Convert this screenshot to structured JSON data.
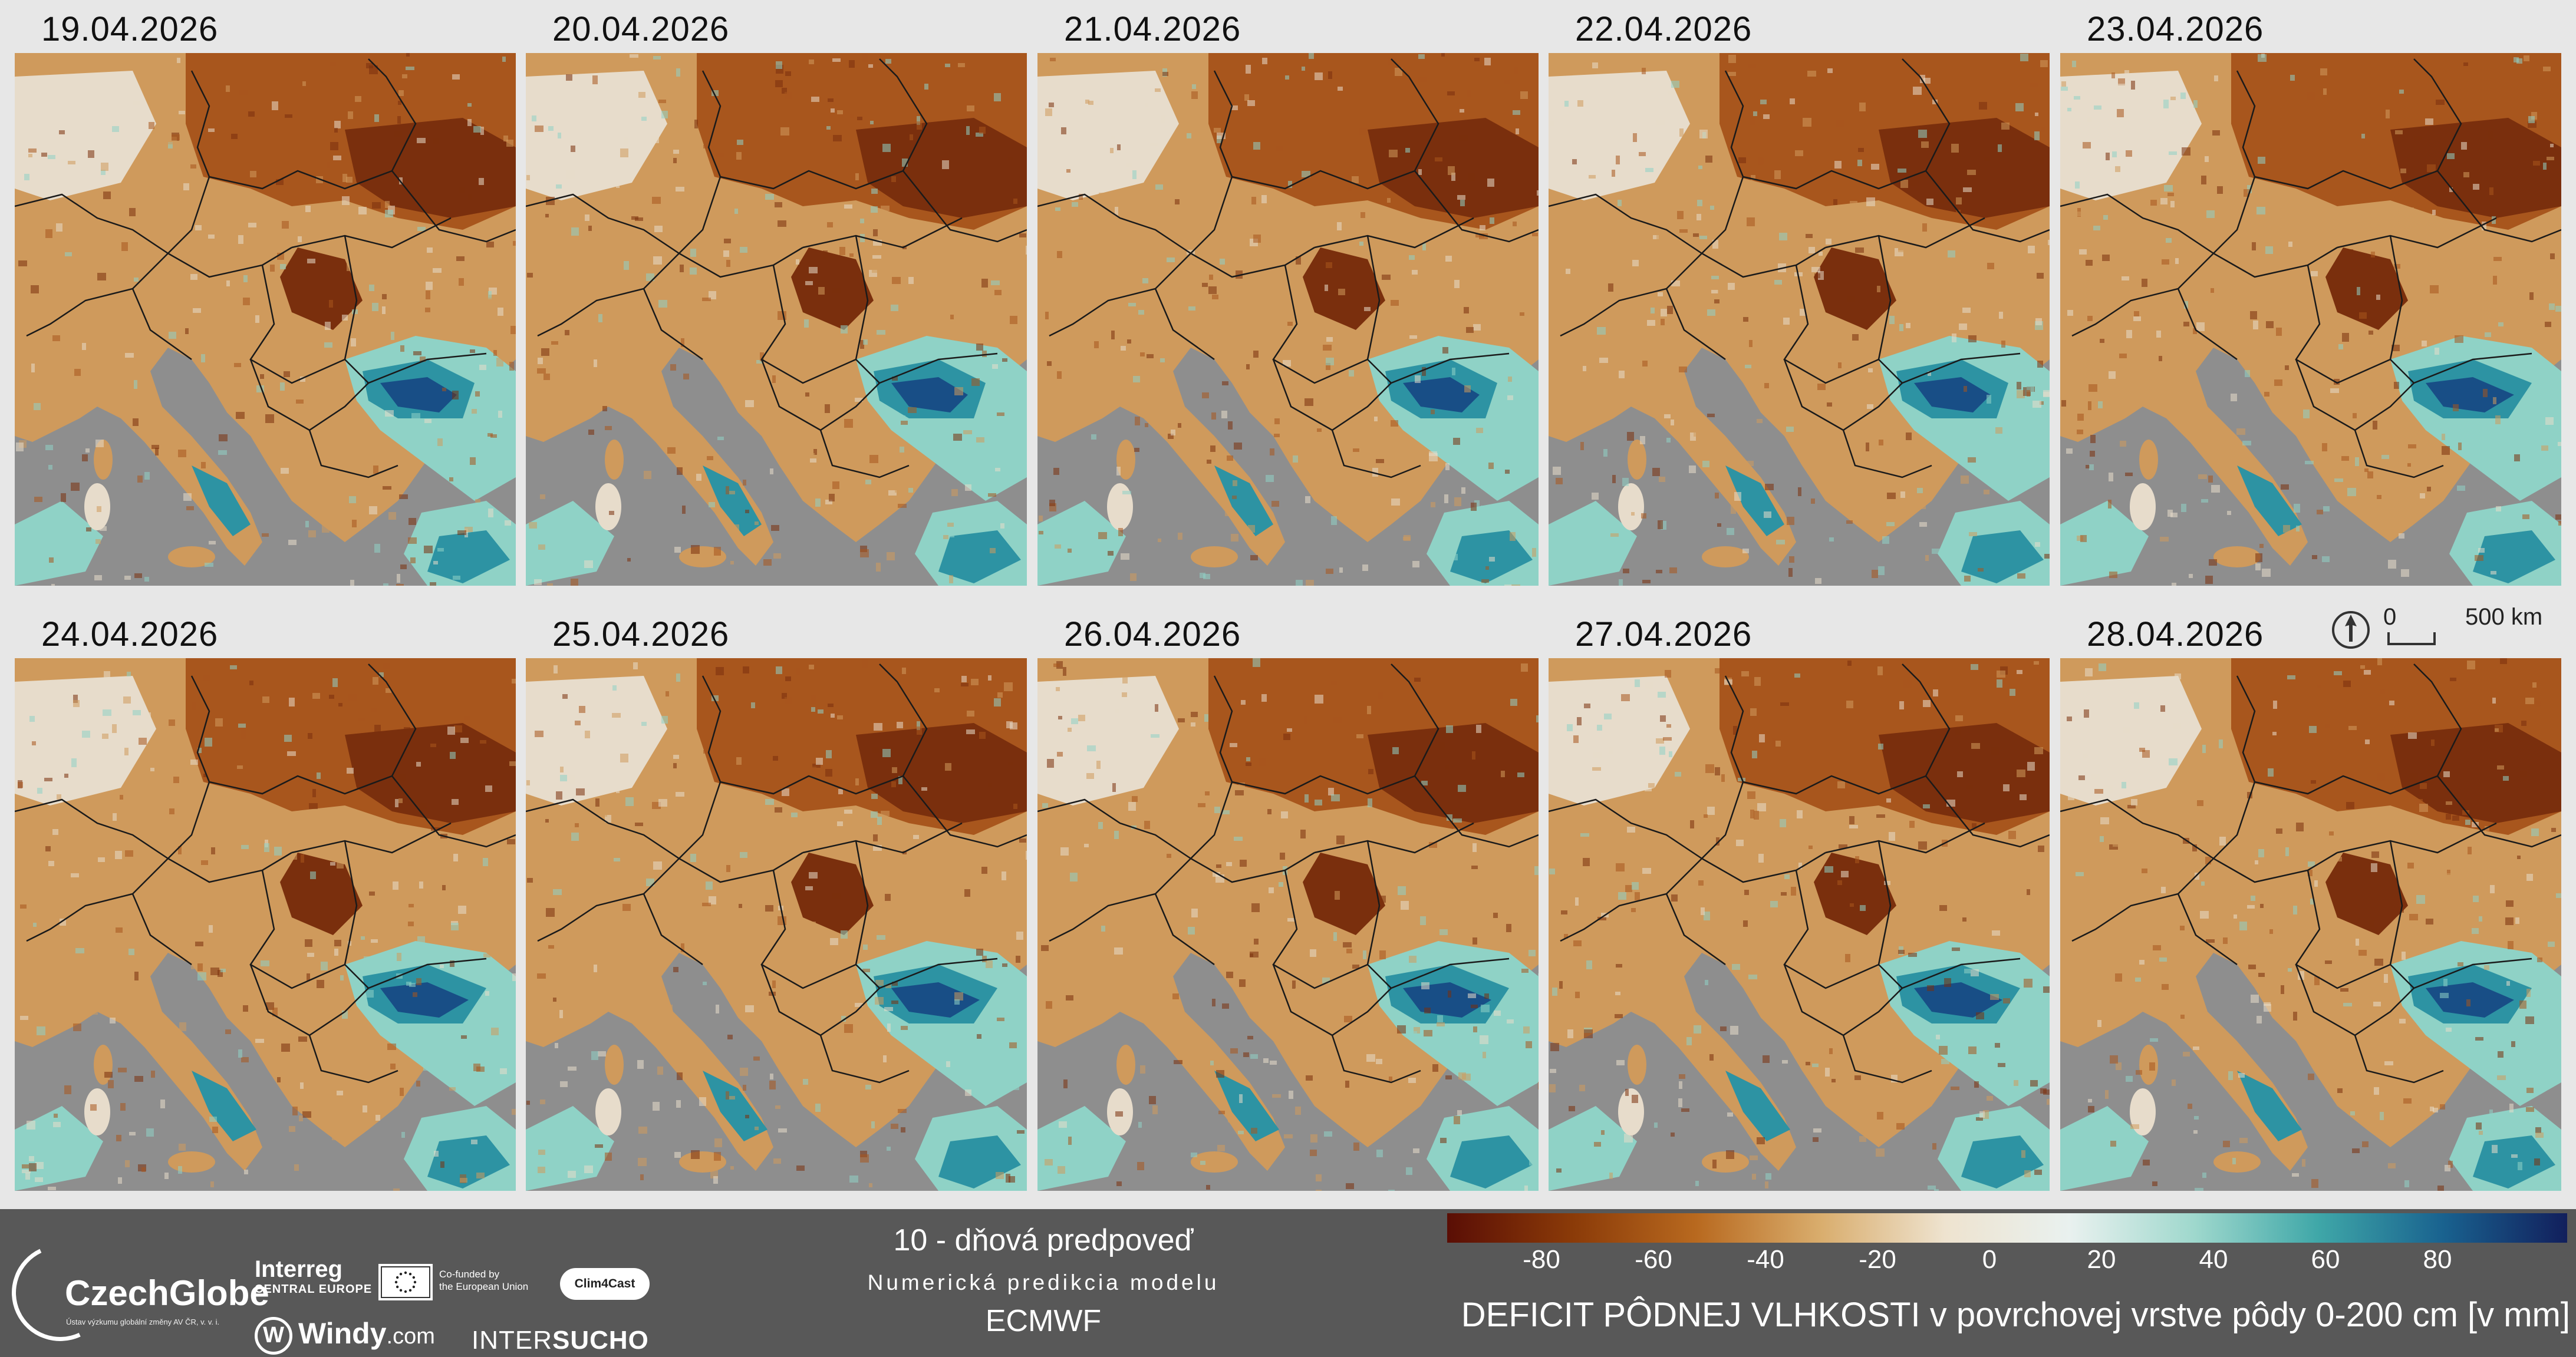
{
  "panels": [
    {
      "date": "19.04.2026"
    },
    {
      "date": "20.04.2026"
    },
    {
      "date": "21.04.2026"
    },
    {
      "date": "22.04.2026"
    },
    {
      "date": "23.04.2026"
    },
    {
      "date": "24.04.2026"
    },
    {
      "date": "25.04.2026"
    },
    {
      "date": "26.04.2026"
    },
    {
      "date": "27.04.2026"
    },
    {
      "date": "28.04.2026"
    }
  ],
  "scale": {
    "zero": "0",
    "distance": "500 km"
  },
  "footer": {
    "forecast_title": "10 - dňová predpoveď",
    "forecast_subtitle": "Numerická predikcia modelu",
    "model": "ECMWF",
    "logos": {
      "czechglobe": "CzechGlobe",
      "czechglobe_sub": "Ústav výzkumu globální změny AV ČR, v. v. i.",
      "interreg": "Interreg",
      "interreg_sub": "CENTRAL EUROPE",
      "eu_text_1": "Co-funded by",
      "eu_text_2": "the European Union",
      "clim4cast": "Clim4Cast",
      "windy": "Windy",
      "windy_com": ".com",
      "intersucho_a": "INTER",
      "intersucho_b": "SUCHO"
    }
  },
  "legend": {
    "title": "DEFICIT PÔDNEJ VLHKOSTI v povrchovej vrstve pôdy 0-200 cm [v mm]",
    "min": -100,
    "max": 100,
    "ticks": [
      "-80",
      "-60",
      "-40",
      "-20",
      "0",
      "20",
      "40",
      "60",
      "80"
    ],
    "colors": [
      "#5a0e05",
      "#8a3a08",
      "#b8691f",
      "#d9ad6d",
      "#eee3cf",
      "#e9f1ef",
      "#9fd8cd",
      "#3fa7a8",
      "#19628f",
      "#121f5c"
    ]
  },
  "map_colors": {
    "background": "#8e8e8e",
    "dry_dark": "#7a2f0d",
    "dry_mid": "#a8561d",
    "dry_light": "#cf9a5c",
    "neutral": "#e7dccb",
    "wet_light": "#8fd2c6",
    "wet_mid": "#2d93a3",
    "wet_dark": "#184e86",
    "border": "#1a1a1a"
  }
}
